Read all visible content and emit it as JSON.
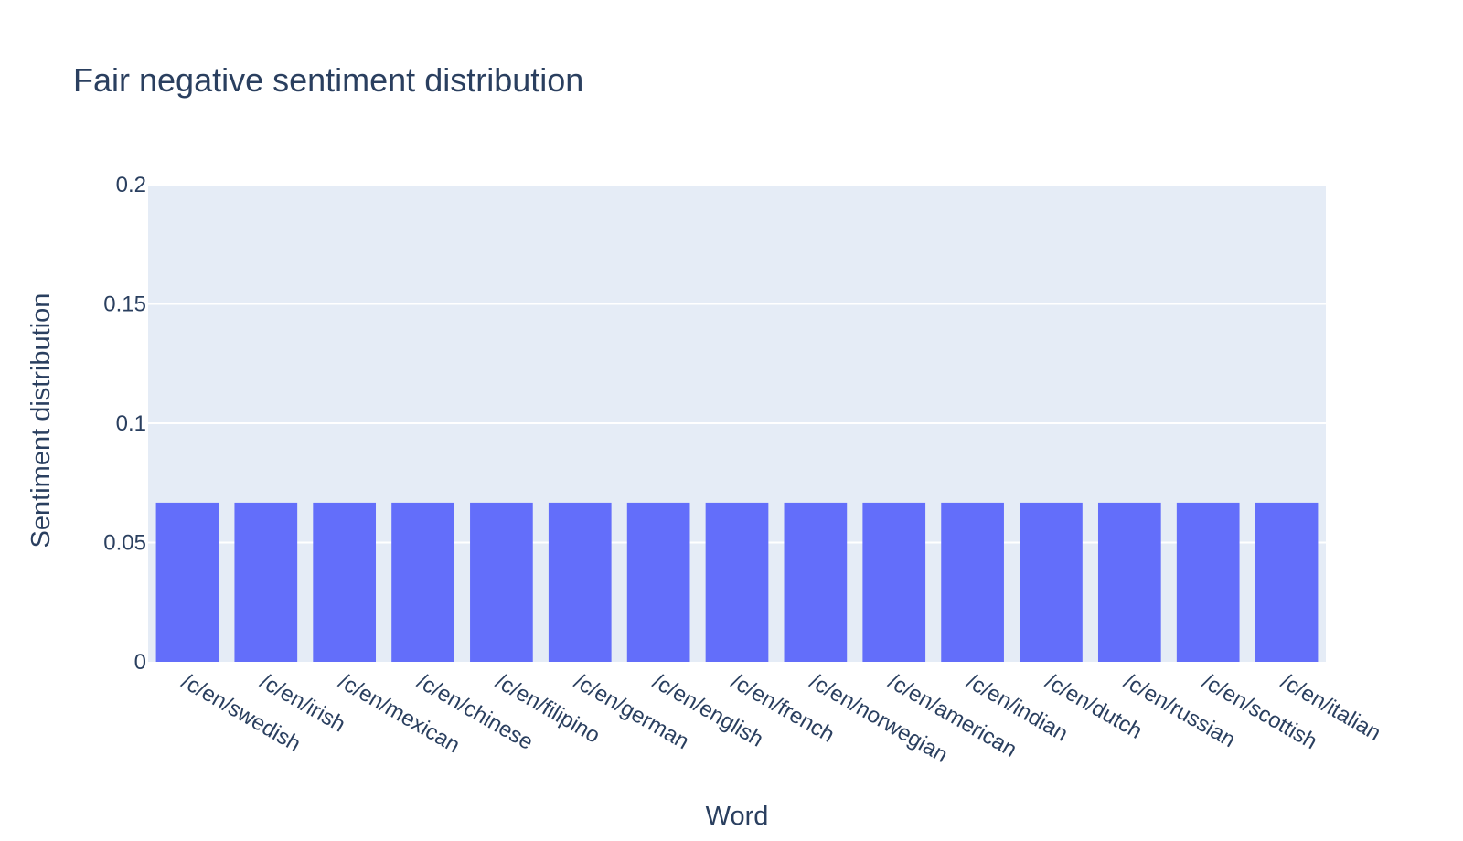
{
  "chart_data": {
    "type": "bar",
    "title": "Fair negative sentiment distribution",
    "xlabel": "Word",
    "ylabel": "Sentiment distribution",
    "categories": [
      "/c/en/swedish",
      "/c/en/irish",
      "/c/en/mexican",
      "/c/en/chinese",
      "/c/en/filipino",
      "/c/en/german",
      "/c/en/english",
      "/c/en/french",
      "/c/en/norwegian",
      "/c/en/american",
      "/c/en/indian",
      "/c/en/dutch",
      "/c/en/russian",
      "/c/en/scottish",
      "/c/en/italian"
    ],
    "values": [
      0.0667,
      0.0667,
      0.0667,
      0.0667,
      0.0667,
      0.0667,
      0.0667,
      0.0667,
      0.0667,
      0.0667,
      0.0667,
      0.0667,
      0.0667,
      0.0667,
      0.0667
    ],
    "ylim": [
      0,
      0.2
    ],
    "yticks": [
      0,
      0.05,
      0.1,
      0.15,
      0.2
    ],
    "ytick_labels": [
      "0",
      "0.05",
      "0.1",
      "0.15",
      "0.2"
    ],
    "grid": true,
    "colors": {
      "bar": "#636efa",
      "plot_bg": "#e5ecf6",
      "grid": "#ffffff",
      "text": "#2a3f5f"
    }
  }
}
